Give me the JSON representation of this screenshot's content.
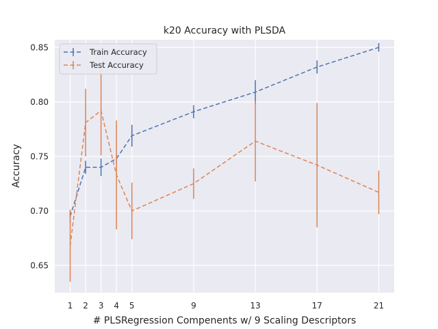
{
  "chart_data": {
    "type": "line",
    "title": "k20 Accuracy with PLSDA",
    "xlabel": "# PLSRegression Compenents w/ 9 Scaling Descriptors",
    "ylabel": "Accuracy",
    "x": [
      1,
      2,
      3,
      4,
      5,
      9,
      13,
      17,
      21
    ],
    "x_tick_labels": [
      "1",
      "2",
      "3",
      "4",
      "5",
      "9",
      "13",
      "17",
      "21"
    ],
    "xlim": [
      0,
      22
    ],
    "ylim": [
      0.625,
      0.857
    ],
    "y_ticks": [
      0.65,
      0.7,
      0.75,
      0.8,
      0.85
    ],
    "y_tick_labels": [
      "0.65",
      "0.70",
      "0.75",
      "0.80",
      "0.85"
    ],
    "grid": true,
    "legend": "top-left",
    "series": [
      {
        "name": "Train Accuracy",
        "color": "#4c72b0",
        "values": [
          0.695,
          0.74,
          0.74,
          0.748,
          0.769,
          0.791,
          0.809,
          0.832,
          0.85
        ],
        "errors": [
          0.006,
          0.006,
          0.008,
          0.004,
          0.01,
          0.006,
          0.011,
          0.006,
          0.004
        ]
      },
      {
        "name": "Test Accuracy",
        "color": "#dd8452",
        "values": [
          0.668,
          0.781,
          0.792,
          0.733,
          0.7,
          0.725,
          0.764,
          0.742,
          0.717
        ],
        "errors": [
          0.033,
          0.031,
          0.041,
          0.05,
          0.026,
          0.014,
          0.037,
          0.057,
          0.02
        ]
      }
    ]
  }
}
